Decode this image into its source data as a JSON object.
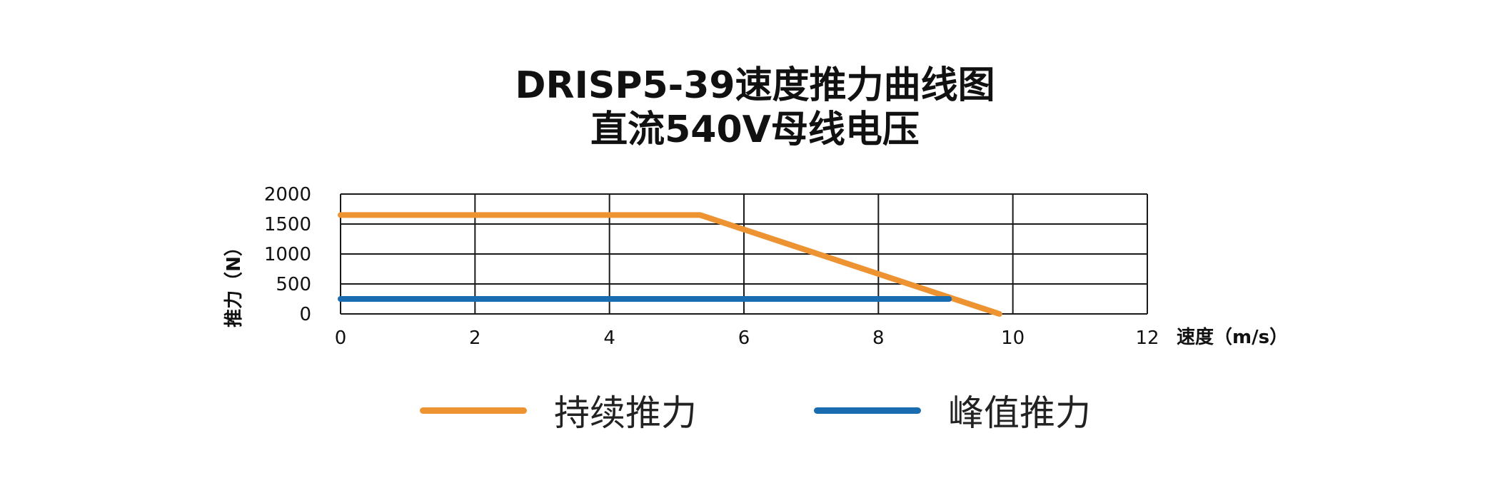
{
  "title": {
    "line1": "DRISP5-39速度推力曲线图",
    "line2": "直流540V母线电压"
  },
  "chart_data": {
    "type": "line",
    "title": "DRISP5-39速度推力曲线图 直流540V母线电压",
    "xlabel": "速度（m/s）",
    "ylabel": "推力（N）",
    "xlim": [
      0,
      12
    ],
    "ylim": [
      0,
      2000
    ],
    "x_ticks": [
      "0",
      "2",
      "4",
      "6",
      "8",
      "10",
      "12"
    ],
    "y_ticks": [
      "2000",
      "1500",
      "1000",
      "500",
      "0"
    ],
    "x_tick_values": [
      0,
      2,
      4,
      6,
      8,
      10,
      12
    ],
    "y_tick_values": [
      2000,
      1500,
      1000,
      500,
      0
    ],
    "grid": true,
    "legend_position": "bottom",
    "series": [
      {
        "name": "持续推力",
        "color": "#ED9332",
        "points": [
          [
            0,
            1650
          ],
          [
            5.35,
            1650
          ],
          [
            9.8,
            0
          ]
        ]
      },
      {
        "name": "峰值推力",
        "color": "#1A6CB0",
        "points": [
          [
            0,
            250
          ],
          [
            9.05,
            250
          ]
        ]
      }
    ]
  }
}
